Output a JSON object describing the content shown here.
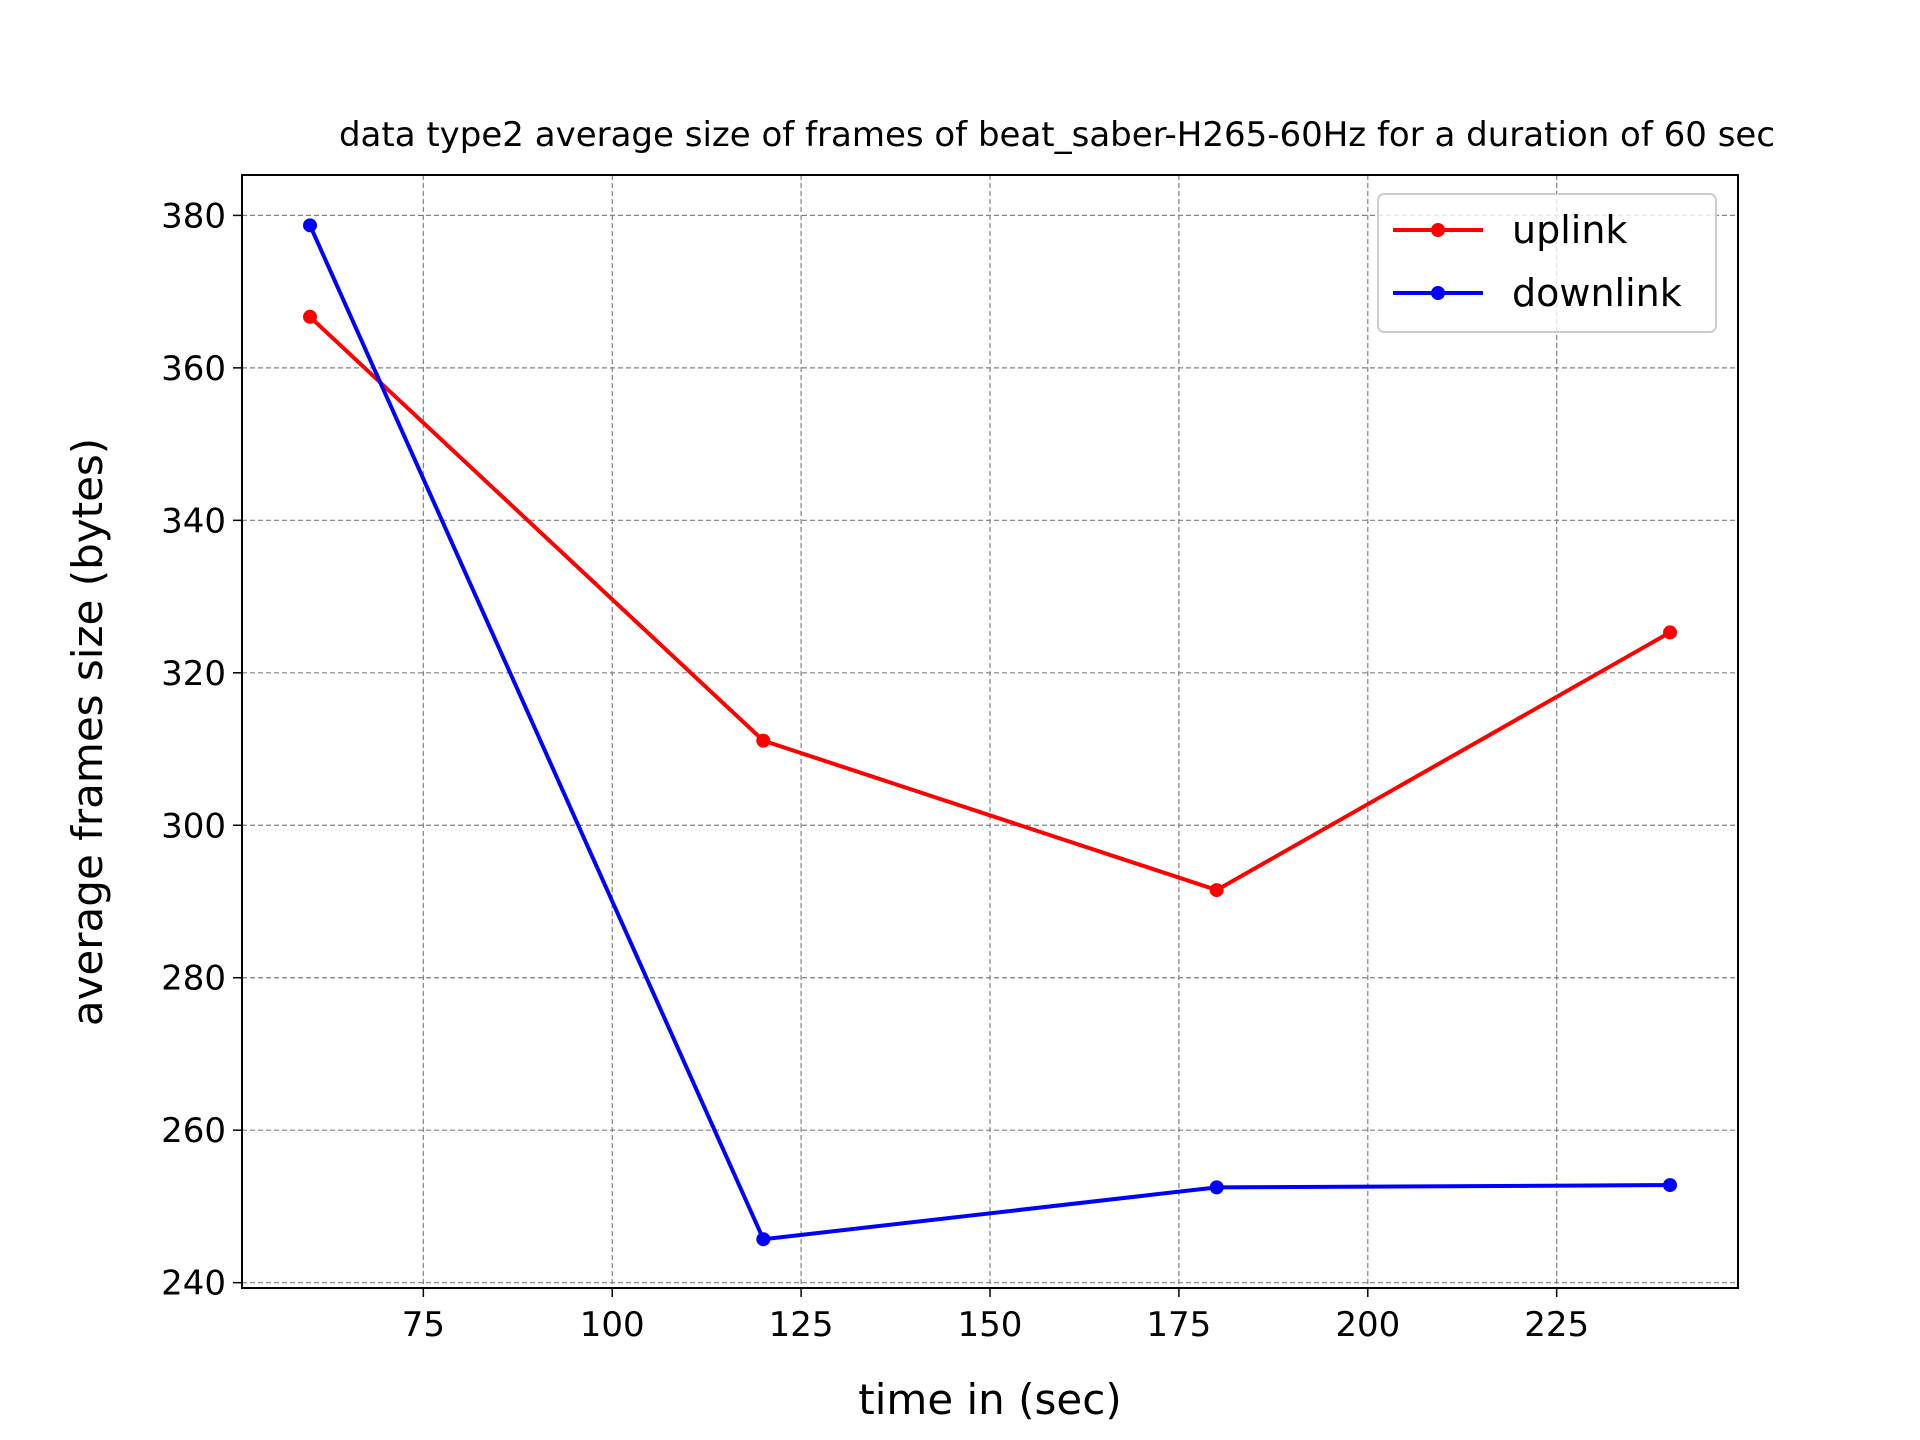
{
  "chart_data": {
    "type": "line",
    "title": "data type2 average size of frames of beat_saber-H265-60Hz for a duration of 60 sec",
    "xlabel": "time in (sec)",
    "ylabel": "average frames size (bytes)",
    "xlim": [
      51,
      249
    ],
    "ylim": [
      239.3,
      385.3
    ],
    "xticks": [
      75,
      100,
      125,
      150,
      175,
      200,
      225
    ],
    "yticks": [
      240,
      260,
      280,
      300,
      320,
      340,
      360,
      380
    ],
    "grid": true,
    "legend_position": "top-right",
    "series": [
      {
        "name": "uplink",
        "color": "#ff0000",
        "x": [
          60,
          120,
          180,
          240
        ],
        "y": [
          366.7,
          311.1,
          291.5,
          325.3
        ]
      },
      {
        "name": "downlink",
        "color": "#0000ff",
        "x": [
          60,
          120,
          180,
          240
        ],
        "y": [
          378.7,
          245.7,
          252.5,
          252.8
        ]
      }
    ]
  }
}
